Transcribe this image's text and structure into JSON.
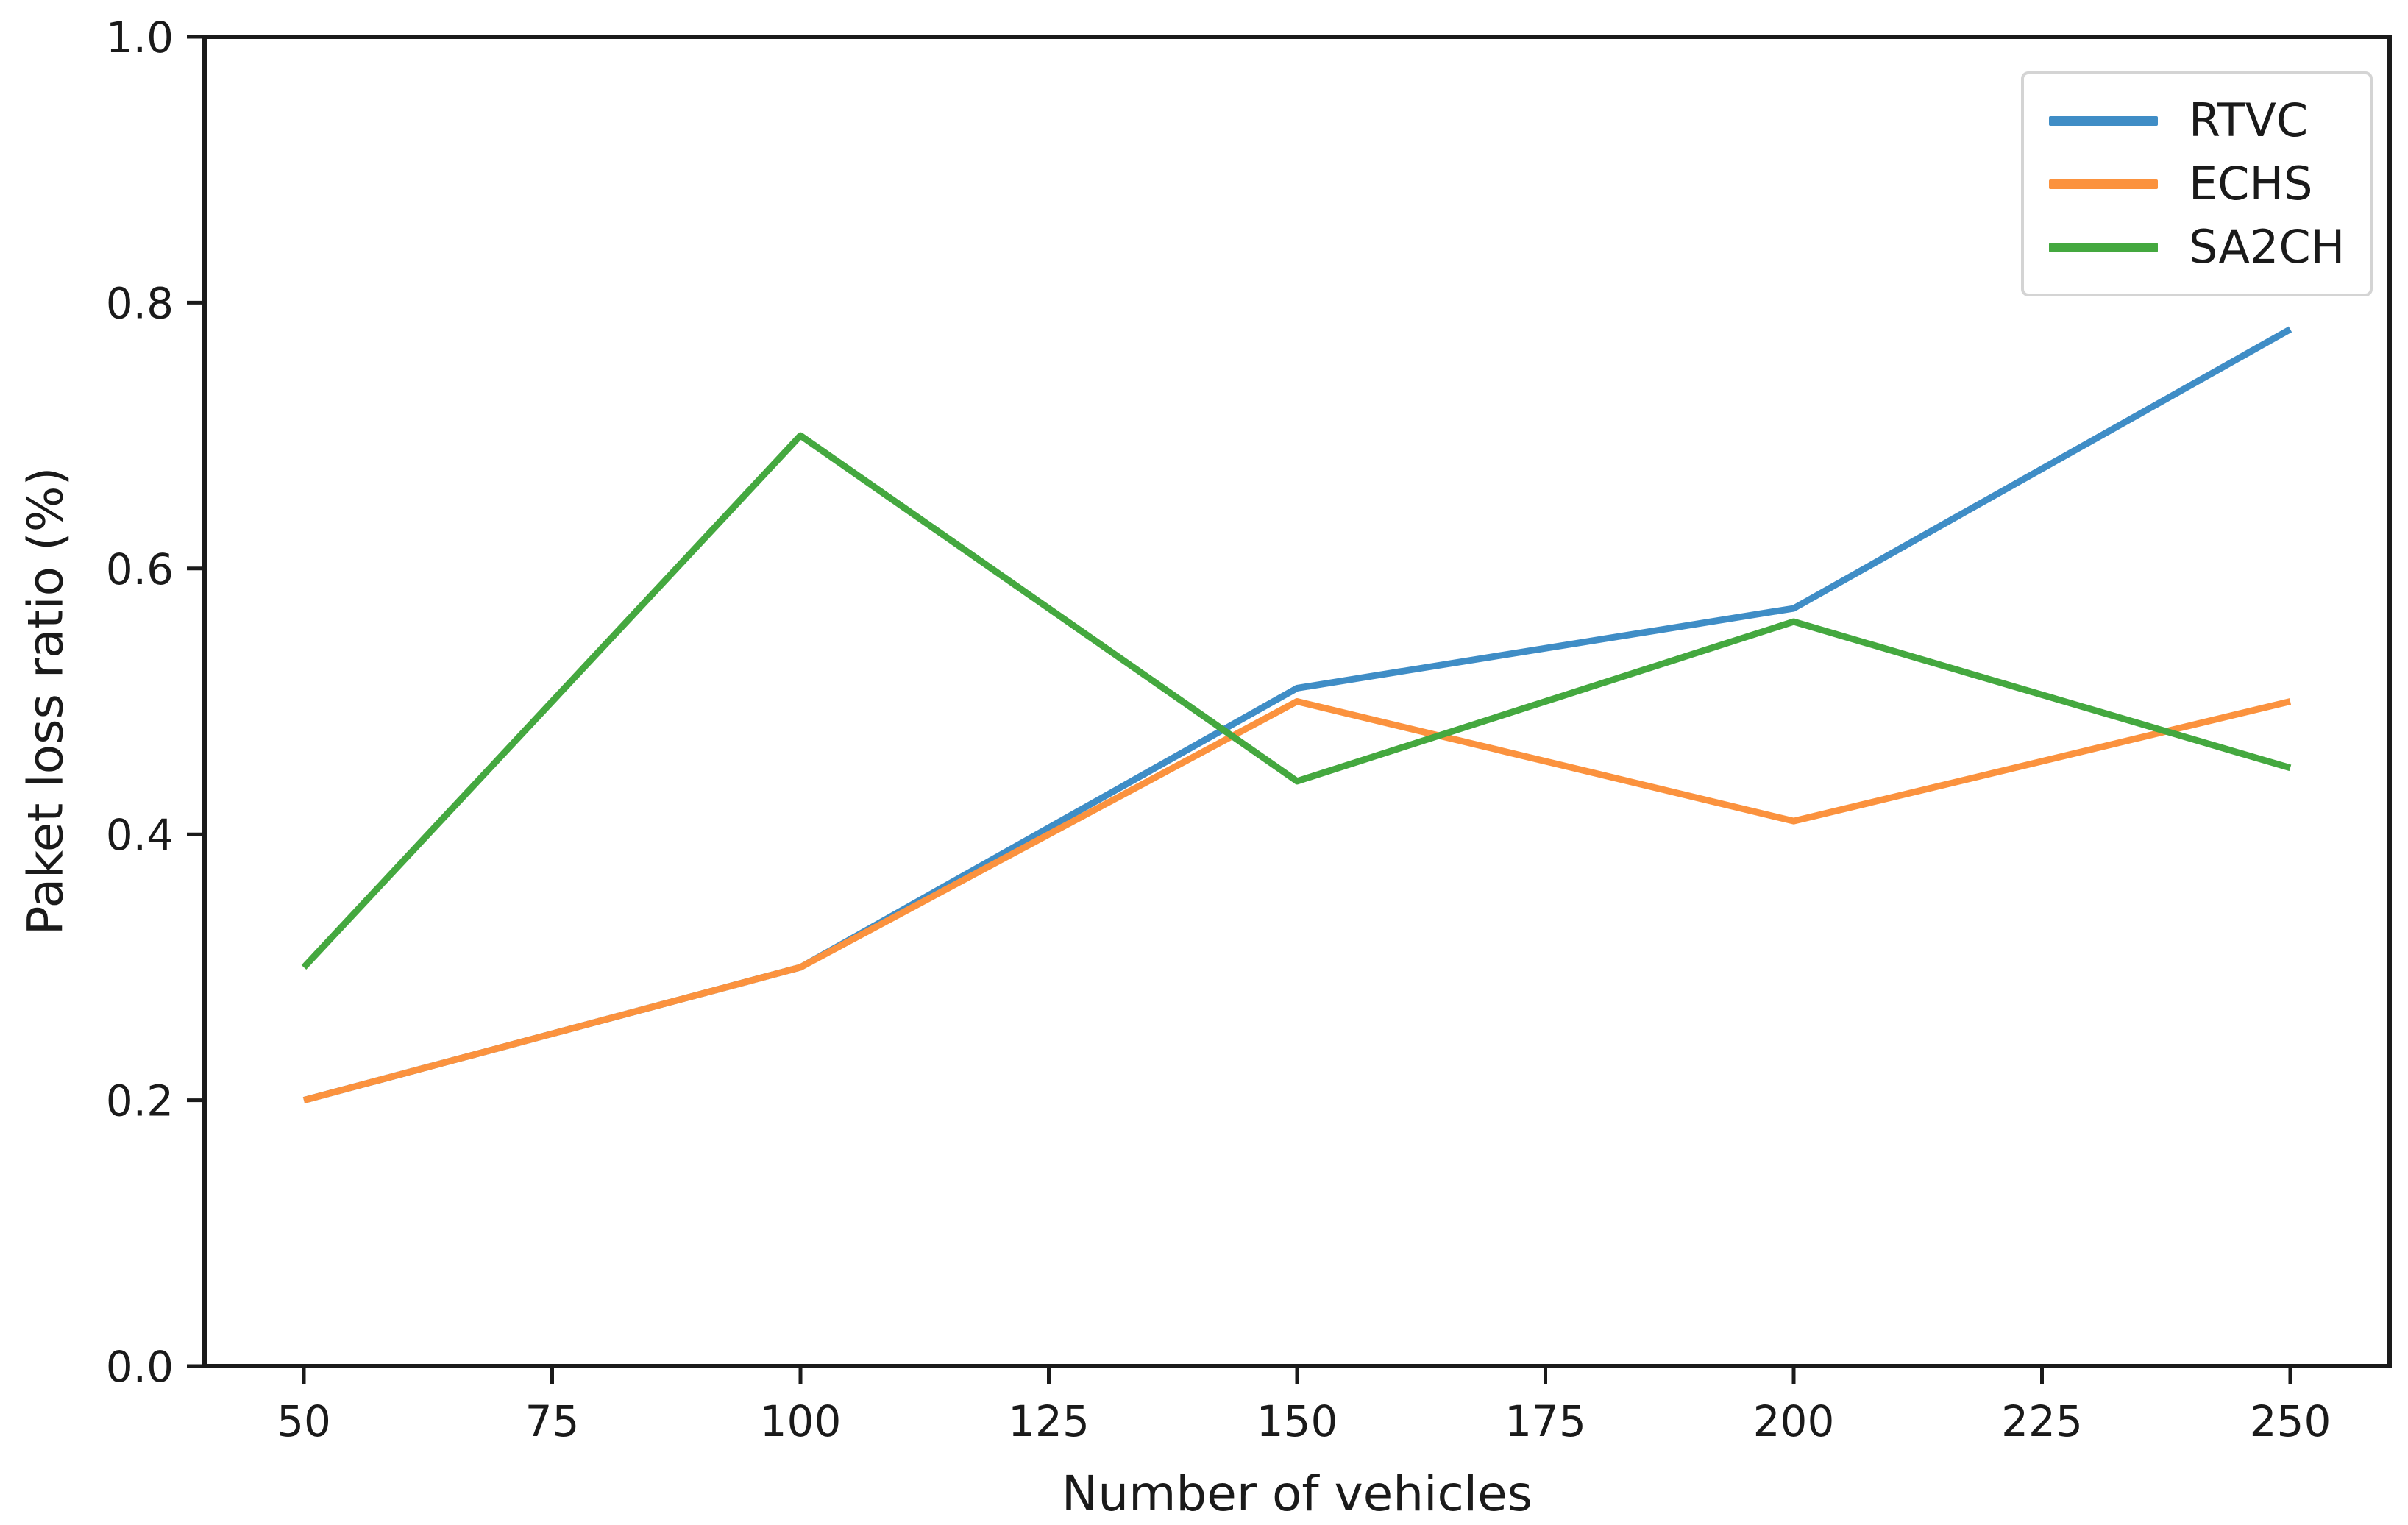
{
  "figure": {
    "background": "#ffffff",
    "spine_color": "#1a1a1a",
    "tick_label_color": "#1a1a1a"
  },
  "chart_data": {
    "type": "line",
    "title": "",
    "xlabel": "Number of vehicles",
    "ylabel": "Paket loss ratio (%)",
    "x": [
      50,
      100,
      150,
      200,
      250
    ],
    "series": [
      {
        "name": "RTVC",
        "color": "#3f8dc6",
        "values": [
          0.2,
          0.3,
          0.51,
          0.57,
          0.78
        ]
      },
      {
        "name": "ECHS",
        "color": "#fb923e",
        "values": [
          0.2,
          0.3,
          0.5,
          0.41,
          0.5
        ]
      },
      {
        "name": "SA2CH",
        "color": "#44a83f",
        "values": [
          0.3,
          0.7,
          0.44,
          0.56,
          0.45
        ]
      }
    ],
    "xlim": [
      40,
      260
    ],
    "ylim": [
      0.0,
      1.0
    ],
    "x_ticks": [
      {
        "value": 50,
        "label": "50"
      },
      {
        "value": 75,
        "label": "75"
      },
      {
        "value": 100,
        "label": "100"
      },
      {
        "value": 125,
        "label": "125"
      },
      {
        "value": 150,
        "label": "150"
      },
      {
        "value": 175,
        "label": "175"
      },
      {
        "value": 200,
        "label": "200"
      },
      {
        "value": 225,
        "label": "225"
      },
      {
        "value": 250,
        "label": "250"
      }
    ],
    "y_ticks": [
      {
        "value": 0.0,
        "label": "0.0"
      },
      {
        "value": 0.2,
        "label": "0.2"
      },
      {
        "value": 0.4,
        "label": "0.4"
      },
      {
        "value": 0.6,
        "label": "0.6"
      },
      {
        "value": 0.8,
        "label": "0.8"
      },
      {
        "value": 1.0,
        "label": "1.0"
      }
    ],
    "grid": false,
    "legend_position": "upper right"
  },
  "legend": {
    "entries": [
      "RTVC",
      "ECHS",
      "SA2CH"
    ]
  }
}
